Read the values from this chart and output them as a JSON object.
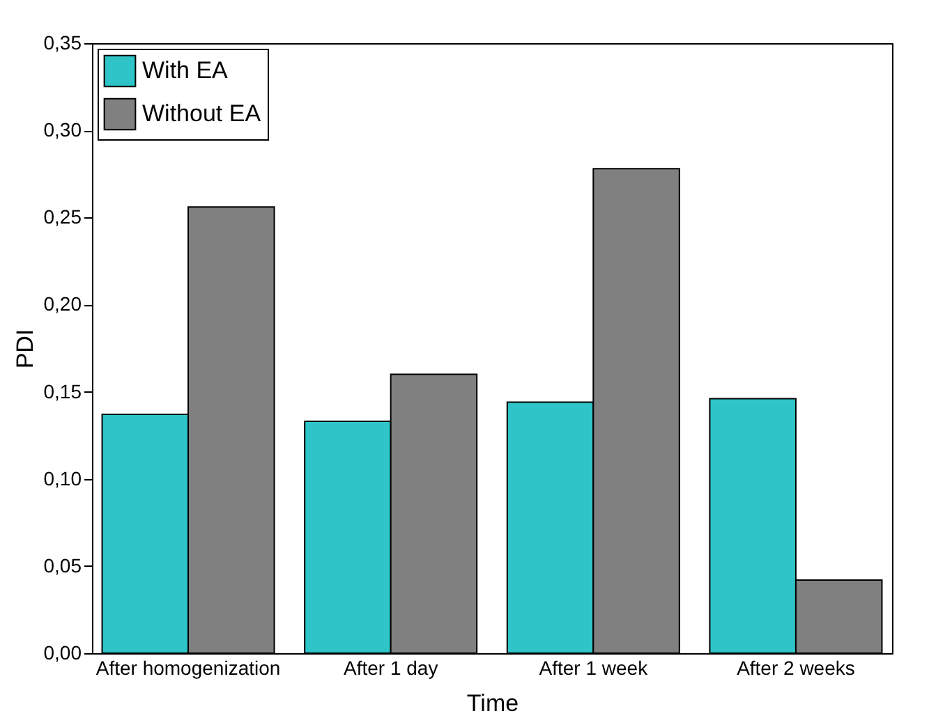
{
  "chart_data": {
    "type": "bar",
    "xlabel": "Time",
    "ylabel": "PDI",
    "categories": [
      "After homogenization",
      "After 1 day",
      "After 1 week",
      "After 2 weeks"
    ],
    "series": [
      {
        "name": "With EA",
        "color": "#2ec4c8",
        "values": [
          0.137,
          0.133,
          0.144,
          0.146
        ]
      },
      {
        "name": "Without EA",
        "color": "#808080",
        "values": [
          0.256,
          0.16,
          0.278,
          0.042
        ]
      }
    ],
    "ylim": [
      0,
      0.35
    ],
    "yticks": [
      {
        "value": 0,
        "label": "0,00"
      },
      {
        "value": 0.05,
        "label": "0,05"
      },
      {
        "value": 0.1,
        "label": "0,10"
      },
      {
        "value": 0.15,
        "label": "0,15"
      },
      {
        "value": 0.2,
        "label": "0,20"
      },
      {
        "value": 0.25,
        "label": "0,25"
      },
      {
        "value": 0.3,
        "label": "0,30"
      },
      {
        "value": 0.35,
        "label": "0,35"
      }
    ],
    "legend": "top left"
  }
}
